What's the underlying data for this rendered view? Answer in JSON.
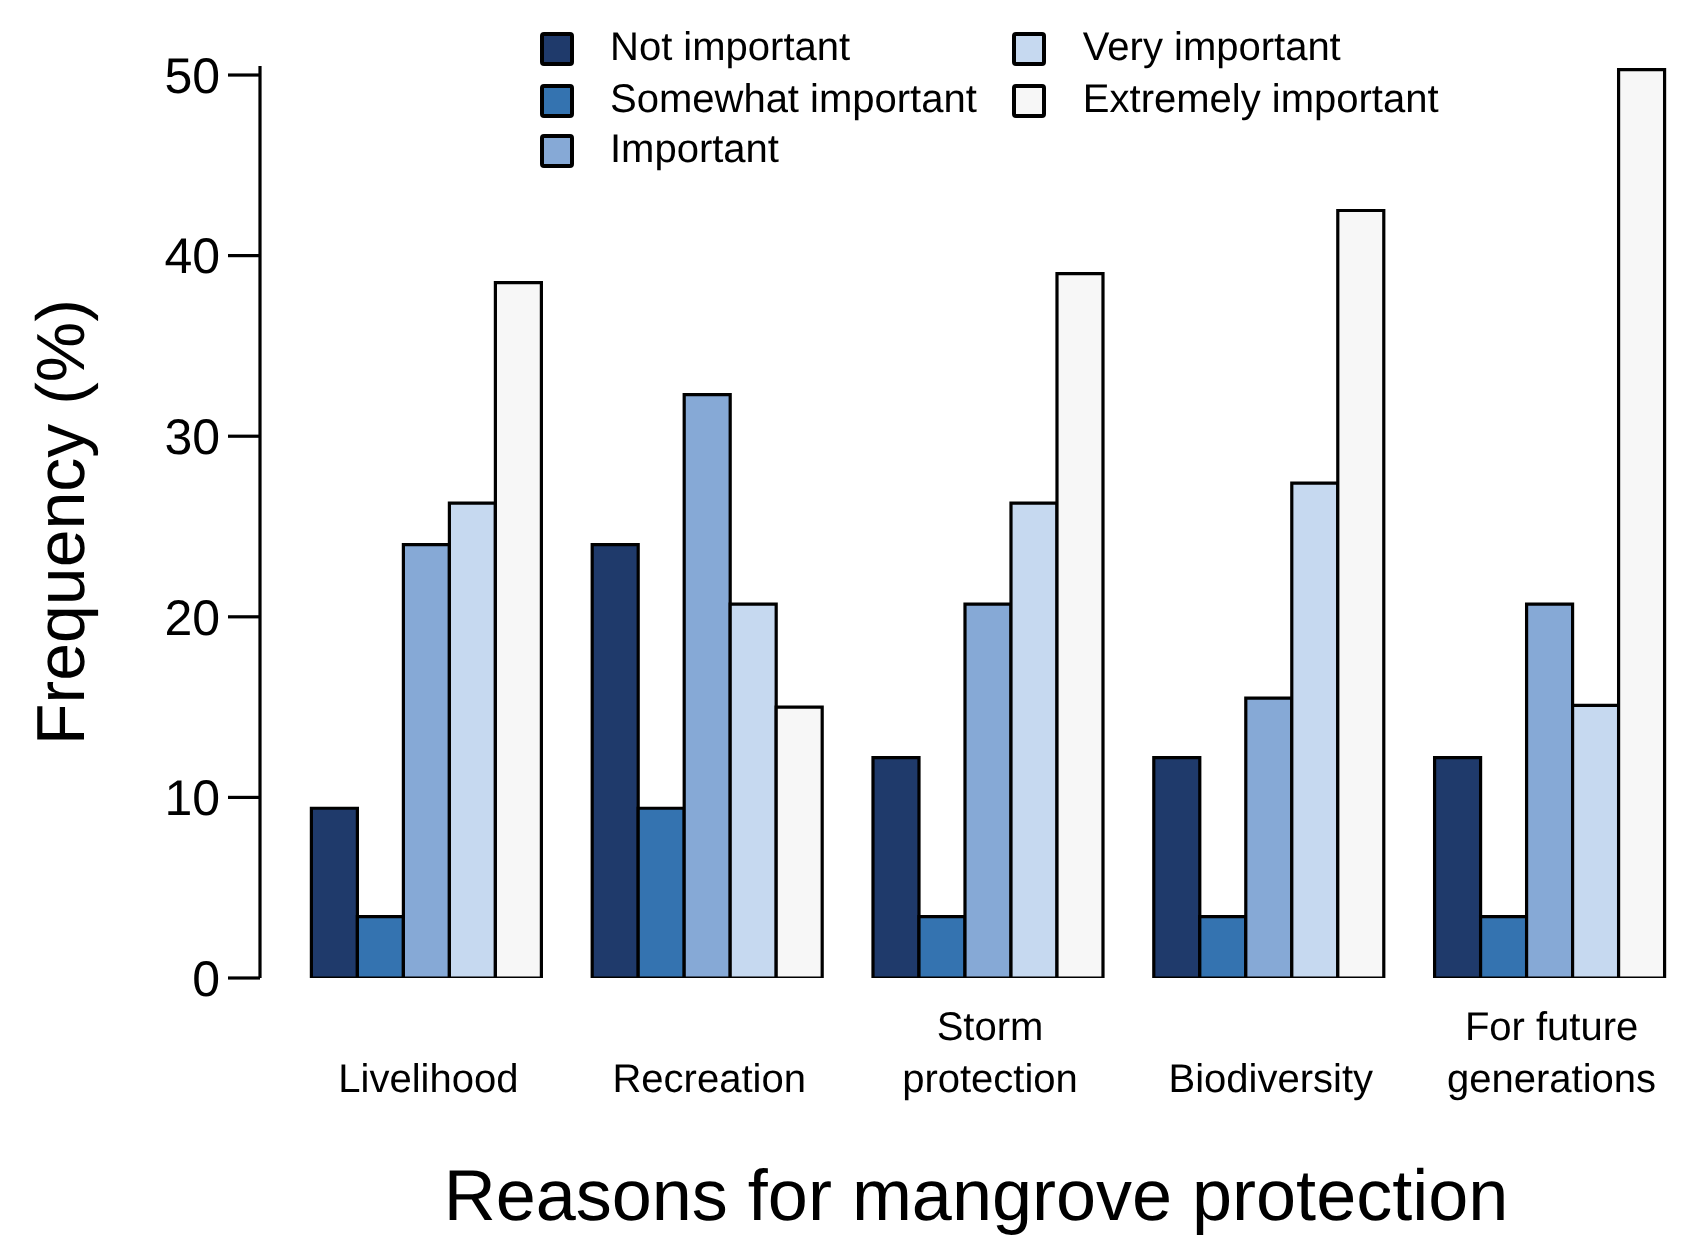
{
  "chart_data": {
    "type": "bar",
    "xlabel": "Reasons for mangrove protection",
    "ylabel": "Frequency (%)",
    "categories": [
      "Livelihood",
      "Recreation",
      "Storm protection",
      "Biodiversity",
      "For future generations"
    ],
    "series": [
      {
        "name": "Not important",
        "color": "#1f3a6b",
        "values": [
          9.4,
          24.0,
          12.2,
          12.2,
          12.2
        ]
      },
      {
        "name": "Somewhat important",
        "color": "#3473b0",
        "values": [
          3.4,
          9.4,
          3.4,
          3.4,
          3.4
        ]
      },
      {
        "name": "Important",
        "color": "#86a9d6",
        "values": [
          24.0,
          32.3,
          20.7,
          15.5,
          20.7
        ]
      },
      {
        "name": "Very important",
        "color": "#c6d9f0",
        "values": [
          26.3,
          20.7,
          26.3,
          27.4,
          15.1
        ]
      },
      {
        "name": "Extremely important",
        "color": "#f7f7f7",
        "values": [
          38.5,
          15.0,
          39.0,
          42.5,
          50.3
        ]
      }
    ],
    "ylim": [
      0,
      50.5
    ],
    "yticks": [
      0,
      10,
      20,
      30,
      40,
      50
    ],
    "legend": "top"
  }
}
